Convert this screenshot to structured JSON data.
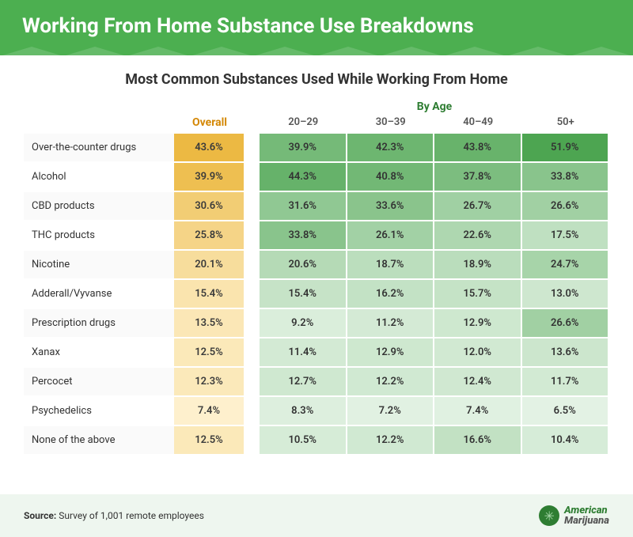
{
  "title": "Working From Home Substance Use Breakdowns",
  "subtitle": "Most Common Substances Used While Working From Home",
  "overall_label": "Overall",
  "byage_label": "By Age",
  "age_headers": [
    "20–29",
    "30–39",
    "40–49",
    "50+"
  ],
  "source_label": "Source:",
  "source_text": "Survey of 1,001 remote employees",
  "logo_text_a": "American",
  "logo_text_m": "Marijuana",
  "style": {
    "header_bg": "#4caf50",
    "byage_color": "#2e7d32",
    "overall_header_color": "#d48806",
    "row_alt_bg": "#fafafa",
    "footer_bg": "#eef6ef",
    "overall_scale": {
      "min": 5,
      "max": 55,
      "color_min": "#fff4d6",
      "color_max": "#e6a817"
    },
    "age_scale": {
      "min": 5,
      "max": 55,
      "color_min": "#e8f5e9",
      "color_max": "#43a047"
    }
  },
  "rows": [
    {
      "label": "Over-the-counter drugs",
      "overall": 43.6,
      "ages": [
        39.9,
        42.3,
        43.8,
        51.9
      ]
    },
    {
      "label": "Alcohol",
      "overall": 39.9,
      "ages": [
        44.3,
        40.8,
        37.8,
        33.8
      ]
    },
    {
      "label": "CBD products",
      "overall": 30.6,
      "ages": [
        31.6,
        33.6,
        26.7,
        26.6
      ]
    },
    {
      "label": "THC products",
      "overall": 25.8,
      "ages": [
        33.8,
        26.1,
        22.6,
        17.5
      ]
    },
    {
      "label": "Nicotine",
      "overall": 20.1,
      "ages": [
        20.6,
        18.7,
        18.9,
        24.7
      ]
    },
    {
      "label": "Adderall/Vyvanse",
      "overall": 15.4,
      "ages": [
        15.4,
        16.2,
        15.7,
        13.0
      ]
    },
    {
      "label": "Prescription drugs",
      "overall": 13.5,
      "ages": [
        9.2,
        11.2,
        12.9,
        26.6
      ]
    },
    {
      "label": "Xanax",
      "overall": 12.5,
      "ages": [
        11.4,
        12.9,
        12.0,
        13.6
      ]
    },
    {
      "label": "Percocet",
      "overall": 12.3,
      "ages": [
        12.7,
        12.2,
        12.4,
        11.7
      ]
    },
    {
      "label": "Psychedelics",
      "overall": 7.4,
      "ages": [
        8.3,
        7.2,
        7.4,
        6.5
      ]
    },
    {
      "label": "None of the above",
      "overall": 12.5,
      "ages": [
        10.5,
        12.2,
        16.6,
        10.4
      ]
    }
  ]
}
